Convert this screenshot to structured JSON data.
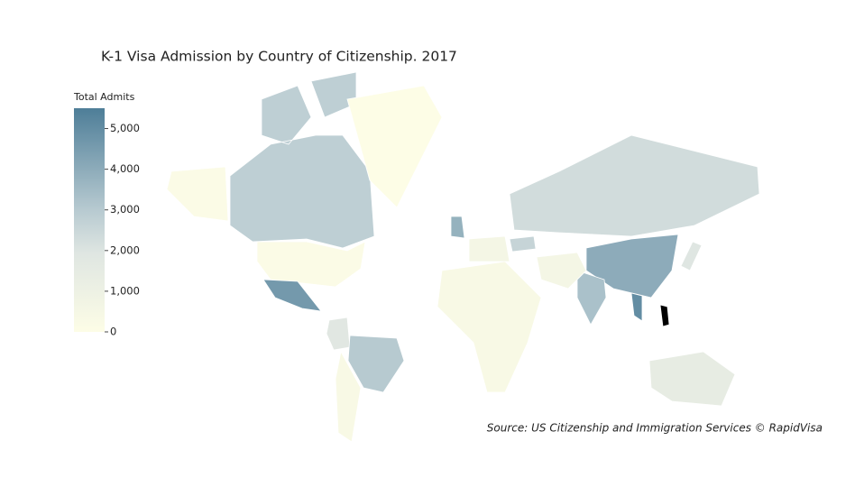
{
  "chart_data": {
    "type": "choropleth",
    "title": "K-1 Visa Admission by Country of Citizenship. 2017",
    "colorbar_title": "Total Admits",
    "clim": [
      0,
      5500
    ],
    "ticks": [
      0,
      {
        "value": 1000,
        "label": "1,000"
      },
      {
        "value": 2000,
        "label": "2,000"
      },
      {
        "value": 3000,
        "label": "3,000"
      },
      {
        "value": 4000,
        "label": "4,000"
      },
      {
        "value": 5000,
        "label": "5,000"
      }
    ],
    "colorscale": [
      [
        0,
        "#fdfde6"
      ],
      [
        0.35,
        "#dfe6e2"
      ],
      [
        0.55,
        "#b6c9d0"
      ],
      [
        1,
        "#4e7e98"
      ]
    ],
    "above_color": "#000000",
    "values": [
      2800,
      150,
      20,
      4600,
      1800,
      3000,
      3800,
      2300,
      4000,
      3300,
      5000,
      6000,
      1400,
      2600,
      1900,
      300,
      600
    ],
    "source": "Source: US Citizenship and Immigration Services © RapidVisa"
  }
}
